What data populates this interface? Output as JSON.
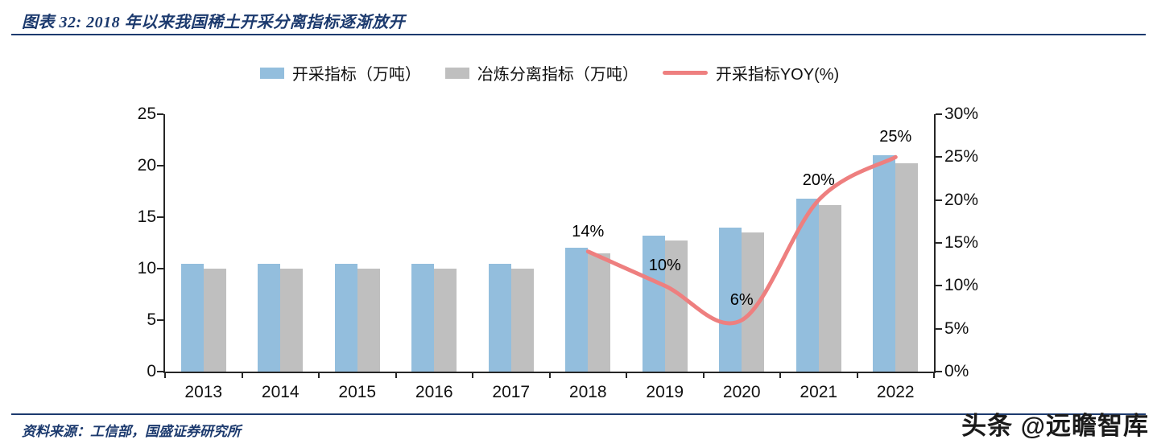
{
  "header": {
    "title": "图表 32:  2018 年以来我国稀土开采分离指标逐渐放开"
  },
  "footer": {
    "source": "资料来源：工信部，国盛证券研究所",
    "watermark": "头条 @远瞻智库"
  },
  "colors": {
    "navy": "#1C3A6E",
    "bar_blue": "#93BEDD",
    "bar_gray": "#BFBFBF",
    "line_red": "#EE7F7F"
  },
  "chart_data": {
    "type": "bar",
    "title": "2018 年以来我国稀土开采分离指标逐渐放开",
    "categories": [
      "2013",
      "2014",
      "2015",
      "2016",
      "2017",
      "2018",
      "2019",
      "2020",
      "2021",
      "2022"
    ],
    "series": [
      {
        "name": "开采指标（万吨）",
        "type": "bar",
        "axis": "left",
        "color": "#93BEDD",
        "values": [
          10.5,
          10.5,
          10.5,
          10.5,
          10.5,
          12.0,
          13.2,
          14.0,
          16.8,
          21.0
        ]
      },
      {
        "name": "冶炼分离指标（万吨）",
        "type": "bar",
        "axis": "left",
        "color": "#BFBFBF",
        "values": [
          10.0,
          10.0,
          10.0,
          10.0,
          10.0,
          11.5,
          12.7,
          13.5,
          16.2,
          20.2
        ]
      },
      {
        "name": "开采指标YOY(%)",
        "type": "line",
        "axis": "right",
        "color": "#EE7F7F",
        "values": [
          null,
          null,
          null,
          null,
          null,
          14,
          10,
          6,
          20,
          25
        ],
        "point_labels": [
          null,
          null,
          null,
          null,
          null,
          "14%",
          "10%",
          "6%",
          "20%",
          "25%"
        ]
      }
    ],
    "left_axis": {
      "min": 0,
      "max": 25,
      "ticks": [
        0,
        5,
        10,
        15,
        20,
        25
      ]
    },
    "right_axis": {
      "min": 0,
      "max": 30,
      "ticks": [
        "0%",
        "5%",
        "10%",
        "15%",
        "20%",
        "25%",
        "30%"
      ],
      "unit": "%"
    },
    "legend_position": "top",
    "grid": false
  }
}
